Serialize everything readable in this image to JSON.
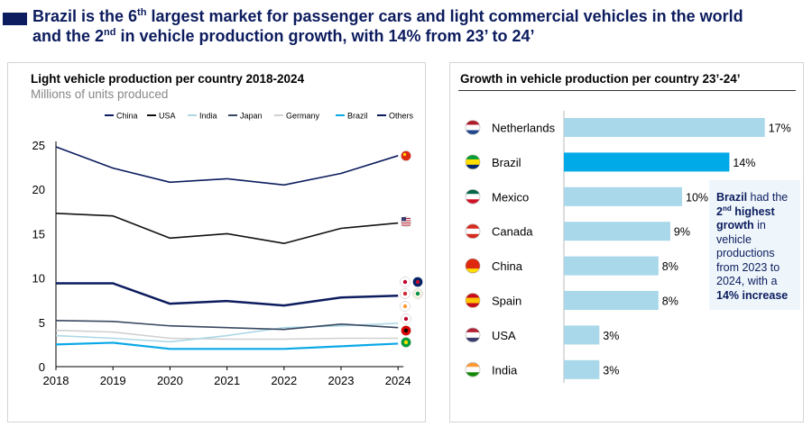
{
  "title": {
    "line1_pre": "Brazil is the 6",
    "line1_sup": "th",
    "line1_post": " largest market for passenger cars and light commercial vehicles in the world",
    "line2_pre": "and the 2",
    "line2_sup": "nd",
    "line2_post": " in vehicle production growth, with 14% from 23’ to 24’"
  },
  "callout": {
    "b1": "Brazil",
    "t1": " had the ",
    "b2a": "2",
    "b2sup": "nd",
    "b2b": " highest growth",
    "t2": " in vehicle productions from 2023 to 2024, with a ",
    "b3": "14% increase"
  },
  "colors": {
    "navy": "#0c1c5e",
    "black": "#111111",
    "light_blue": "#add8e6",
    "gray_light": "#d0d0d0",
    "slate": "#384860",
    "brazil_blue": "#0aa8e6",
    "bar": "#a8d8ea",
    "bar_highlight": "#00a9e8"
  },
  "chart_data": [
    {
      "type": "line",
      "title": "Light vehicle production per country 2018-2024",
      "subtitle": "Millions of units produced",
      "x": [
        "2018",
        "2019",
        "2020",
        "2021",
        "2022",
        "2023",
        "2024"
      ],
      "ylim": [
        0,
        25
      ],
      "yticks": [
        "0",
        "5",
        "10",
        "15",
        "20",
        "25"
      ],
      "grid": false,
      "legend_position": "top",
      "series": [
        {
          "name": "China",
          "color": "#0c1c5e",
          "values": [
            24.8,
            22.4,
            20.8,
            21.2,
            20.5,
            21.8,
            23.8
          ]
        },
        {
          "name": "USA",
          "color": "#111111",
          "values": [
            17.3,
            17.0,
            14.5,
            15.0,
            13.9,
            15.6,
            16.2
          ]
        },
        {
          "name": "India",
          "color": "#add8e6",
          "values": [
            3.5,
            3.2,
            2.8,
            3.5,
            4.4,
            4.6,
            4.9
          ]
        },
        {
          "name": "Japan",
          "color": "#384860",
          "values": [
            5.2,
            5.1,
            4.6,
            4.4,
            4.2,
            4.8,
            4.4
          ]
        },
        {
          "name": "Germany",
          "color": "#d0d0d0",
          "values": [
            4.1,
            3.9,
            3.2,
            3.1,
            3.1,
            3.2,
            3.2
          ]
        },
        {
          "name": "Brazil",
          "color": "#0aa8e6",
          "values": [
            2.5,
            2.7,
            2.0,
            2.0,
            2.0,
            2.3,
            2.6
          ]
        },
        {
          "name": "Others",
          "color": "#0c1c5e",
          "values": [
            9.4,
            9.4,
            7.1,
            7.4,
            6.9,
            7.8,
            8.0
          ]
        }
      ]
    },
    {
      "type": "bar",
      "orientation": "horizontal",
      "title": "Growth in vehicle production per country 23’-24’",
      "categories": [
        "Netherlands",
        "Brazil",
        "Mexico",
        "Canada",
        "China",
        "Spain",
        "USA",
        "India"
      ],
      "values": [
        17,
        14,
        10,
        9,
        8,
        8,
        3,
        3
      ],
      "value_labels": [
        "17%",
        "14%",
        "10%",
        "9%",
        "8%",
        "8%",
        "3%",
        "3%"
      ],
      "highlight": "Brazil"
    }
  ]
}
